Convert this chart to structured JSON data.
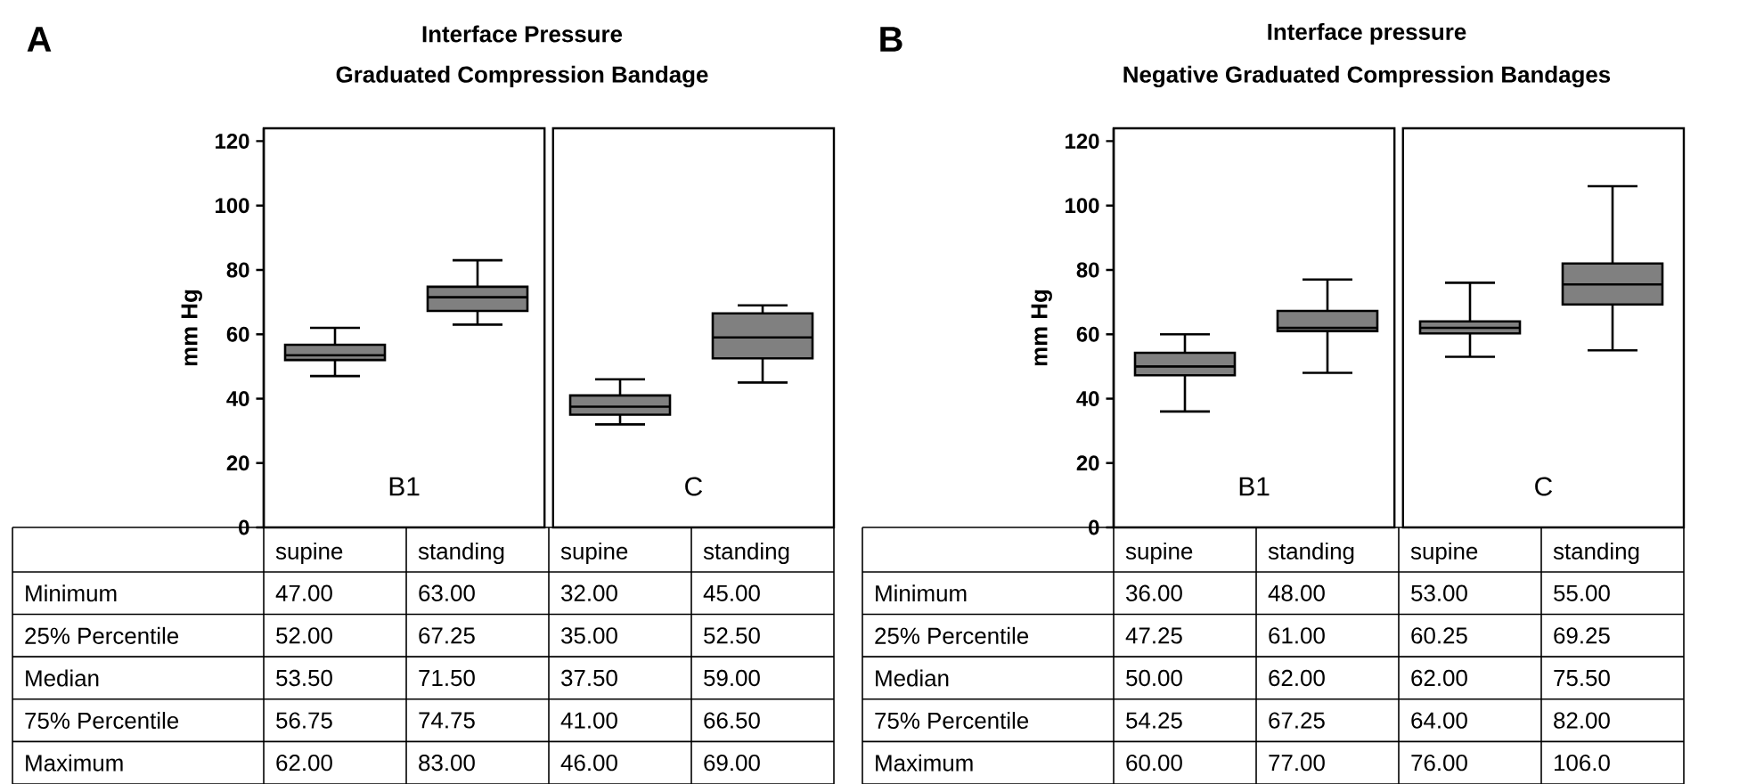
{
  "chart_data": [
    {
      "type": "box",
      "title": "Interface Pressure",
      "subtitle": "Graduated Compression Bandage",
      "ylabel": "mm Hg",
      "categories": [
        "supine",
        "standing",
        "supine",
        "standing"
      ],
      "ylim": [
        0,
        124
      ],
      "yticks": [
        0,
        20,
        40,
        60,
        80,
        100,
        120
      ],
      "annotations": [
        "A",
        "B1",
        "C",
        "Minimum",
        "25% Percentile",
        "Median",
        "75% Percentile",
        "Maximum"
      ],
      "series": [
        {
          "color": "#808080",
          "value_labels": [
            [
              "47.00",
              "52.00",
              "53.50",
              "56.75",
              "62.00"
            ],
            [
              "63.00",
              "67.25",
              "71.50",
              "74.75",
              "83.00"
            ],
            [
              "32.00",
              "35.00",
              "37.50",
              "41.00",
              "46.00"
            ],
            [
              "45.00",
              "52.50",
              "59.00",
              "66.50",
              "69.00"
            ]
          ],
          "boxes": [
            {
              "low": 47,
              "q1": 52,
              "median": 53.5,
              "q3": 56.75,
              "high": 62
            },
            {
              "low": 63,
              "q1": 67.25,
              "median": 71.5,
              "q3": 74.75,
              "high": 83
            },
            {
              "low": 32,
              "q1": 35,
              "median": 37.5,
              "q3": 41,
              "high": 46
            },
            {
              "low": 45,
              "q1": 52.5,
              "median": 59,
              "q3": 66.5,
              "high": 69
            }
          ]
        }
      ]
    },
    {
      "type": "box",
      "title": "Interface pressure",
      "subtitle": "Negative Graduated Compression Bandages",
      "ylabel": "mm Hg",
      "categories": [
        "supine",
        "standing",
        "supine",
        "standing"
      ],
      "ylim": [
        0,
        124
      ],
      "yticks": [
        0,
        20,
        40,
        60,
        80,
        100,
        120
      ],
      "annotations": [
        "B",
        "B1",
        "C",
        "Minimum",
        "25% Percentile",
        "Median",
        "75% Percentile",
        "Maximum"
      ],
      "series": [
        {
          "color": "#808080",
          "value_labels": [
            [
              "36.00",
              "47.25",
              "50.00",
              "54.25",
              "60.00"
            ],
            [
              "48.00",
              "61.00",
              "62.00",
              "67.25",
              "77.00"
            ],
            [
              "53.00",
              "60.25",
              "62.00",
              "64.00",
              "76.00"
            ],
            [
              "55.00",
              "69.25",
              "75.50",
              "82.00",
              "106.0"
            ]
          ],
          "boxes": [
            {
              "low": 36,
              "q1": 47.25,
              "median": 50,
              "q3": 54.25,
              "high": 60
            },
            {
              "low": 48,
              "q1": 61,
              "median": 62,
              "q3": 67.25,
              "high": 77
            },
            {
              "low": 53,
              "q1": 60.25,
              "median": 62,
              "q3": 64,
              "high": 76
            },
            {
              "low": 55,
              "q1": 69.25,
              "median": 75.5,
              "q3": 82,
              "high": 106
            }
          ]
        }
      ]
    }
  ]
}
